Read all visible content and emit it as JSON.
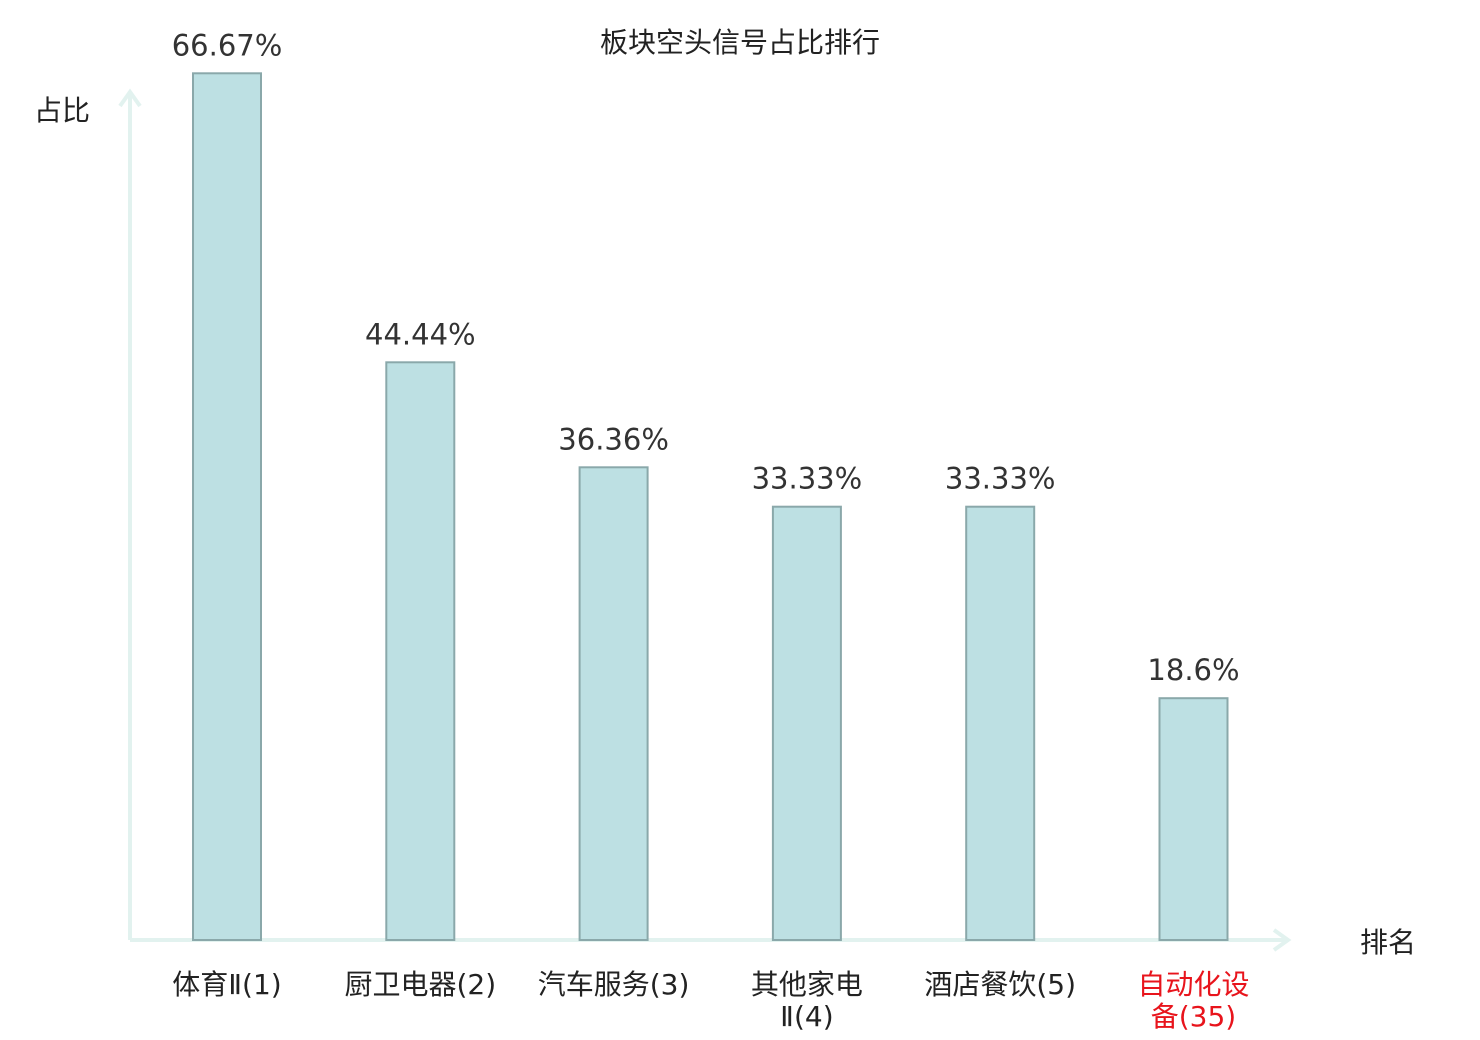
{
  "chart_data": {
    "type": "bar",
    "title": "板块空头信号占比排行",
    "ylabel": "占比",
    "xlabel": "排名",
    "ylim": [
      0,
      70
    ],
    "grid": false,
    "categories": [
      [
        "体育Ⅱ(1)"
      ],
      [
        "厨卫电器(2)"
      ],
      [
        "汽车服务(3)"
      ],
      [
        "其他家电",
        "Ⅱ(4)"
      ],
      [
        "酒店餐饮(5)"
      ],
      [
        "自动化设",
        "备(35)"
      ]
    ],
    "values": [
      66.67,
      44.44,
      36.36,
      33.33,
      33.33,
      18.6
    ],
    "value_labels": [
      "66.67%",
      "44.44%",
      "36.36%",
      "33.33%",
      "33.33%",
      "18.6%"
    ],
    "highlight_index": 5,
    "colors": {
      "bar_fill": "#bde0e3",
      "bar_stroke": "#8aa8aa",
      "axis": "#e2f2ef",
      "highlight": "#e8141c",
      "text": "#222222"
    }
  }
}
